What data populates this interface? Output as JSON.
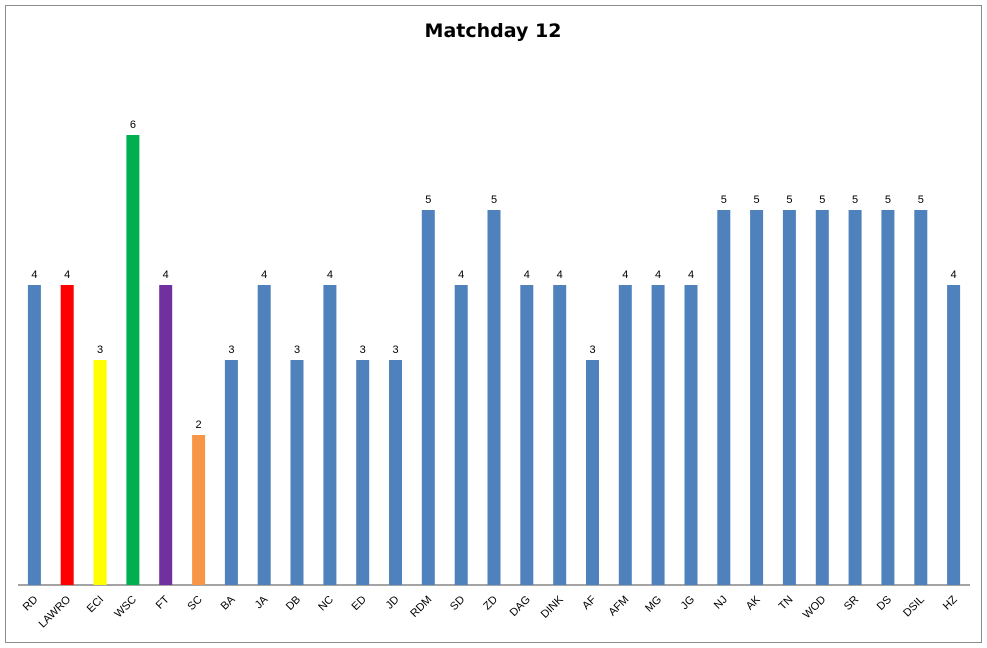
{
  "chart_data": {
    "type": "bar",
    "title": "Matchday 12",
    "xlabel": "",
    "ylabel": "",
    "ylim": [
      0,
      7.8
    ],
    "grid": false,
    "legend": "none",
    "categories": [
      "RD",
      "LAWRO",
      "ECI",
      "WSC",
      "FT",
      "SC",
      "BA",
      "JA",
      "DB",
      "NC",
      "ED",
      "JD",
      "RDM",
      "SD",
      "ZD",
      "DAG",
      "DINK",
      "AF",
      "AFM",
      "MG",
      "JG",
      "NJ",
      "AK",
      "TN",
      "WOD",
      "SR",
      "DS",
      "DSIL",
      "HZ"
    ],
    "values": [
      4,
      4,
      3,
      6,
      4,
      2,
      3,
      4,
      3,
      4,
      3,
      3,
      5,
      4,
      5,
      4,
      4,
      3,
      4,
      4,
      4,
      5,
      5,
      5,
      5,
      5,
      5,
      5,
      4
    ],
    "colors": [
      "#4f81bd",
      "#ff0000",
      "#ffff00",
      "#00b050",
      "#7030a0",
      "#f79646",
      "#4f81bd",
      "#4f81bd",
      "#4f81bd",
      "#4f81bd",
      "#4f81bd",
      "#4f81bd",
      "#4f81bd",
      "#4f81bd",
      "#4f81bd",
      "#4f81bd",
      "#4f81bd",
      "#4f81bd",
      "#4f81bd",
      "#4f81bd",
      "#4f81bd",
      "#4f81bd",
      "#4f81bd",
      "#4f81bd",
      "#4f81bd",
      "#4f81bd",
      "#4f81bd",
      "#4f81bd",
      "#4f81bd"
    ]
  }
}
